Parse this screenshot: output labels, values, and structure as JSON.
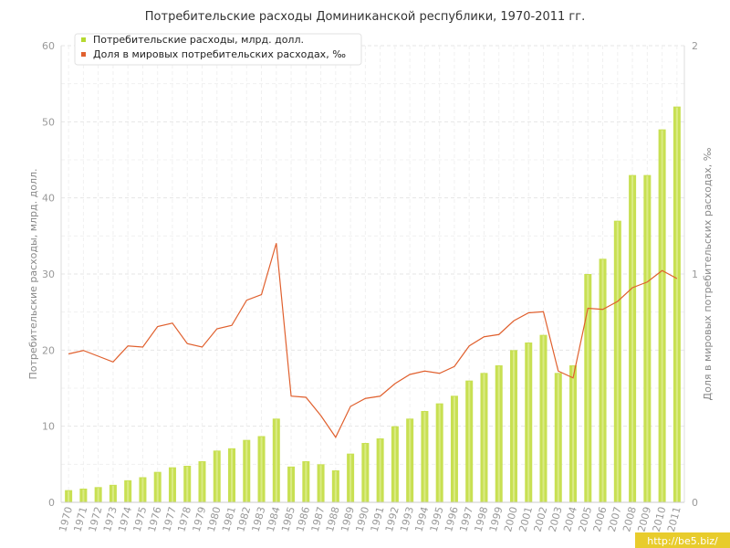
{
  "watermark": "http://be5.biz/",
  "colors": {
    "bars": "#c8e052",
    "bar_stripe": "#e6f2a6",
    "line": "#e0602e",
    "grid": "#e6e6e6"
  },
  "chart_data": {
    "type": "bar",
    "title": "Потребительские расходы Доминиканской республики, 1970-2011 гг.",
    "ylabel": "Потребительские расходы, млрд. долл.",
    "ylabel_right": "Доля в мировых потребительских расходах, ‰",
    "ylim": [
      0,
      60
    ],
    "ylim_right": [
      0,
      2
    ],
    "yticks": [
      "0",
      "10",
      "20",
      "30",
      "40",
      "50",
      "60"
    ],
    "yticks_right": [
      "0",
      "1",
      "2"
    ],
    "legend_position": "top-left",
    "grid": true,
    "categories": [
      "1970",
      "1971",
      "1972",
      "1973",
      "1974",
      "1975",
      "1976",
      "1977",
      "1978",
      "1979",
      "1980",
      "1981",
      "1982",
      "1983",
      "1984",
      "1985",
      "1986",
      "1987",
      "1988",
      "1989",
      "1990",
      "1991",
      "1992",
      "1993",
      "1994",
      "1995",
      "1996",
      "1997",
      "1998",
      "1999",
      "2000",
      "2001",
      "2002",
      "2003",
      "2004",
      "2005",
      "2006",
      "2007",
      "2008",
      "2009",
      "2010",
      "2011"
    ],
    "series": [
      {
        "name": "Потребительские расходы, млрд. долл.",
        "type": "bar",
        "axis": "left",
        "values": [
          1.6,
          1.8,
          2.0,
          2.3,
          2.9,
          3.3,
          4.0,
          4.6,
          4.8,
          5.4,
          6.8,
          7.1,
          8.2,
          8.7,
          11.0,
          4.7,
          5.4,
          5.0,
          4.2,
          6.4,
          7.8,
          8.4,
          10.0,
          11.0,
          12.0,
          13.0,
          14.0,
          16.0,
          17.0,
          18.0,
          20.0,
          21.0,
          22.0,
          17.0,
          18.0,
          30.0,
          32.0,
          37.0,
          43.0,
          43.0,
          49.0,
          52.0
        ]
      },
      {
        "name": "Доля в мировых потребительских расходах, ‰",
        "type": "line",
        "axis": "right",
        "values": [
          0.65,
          0.665,
          0.64,
          0.615,
          0.685,
          0.68,
          0.77,
          0.785,
          0.695,
          0.68,
          0.76,
          0.775,
          0.885,
          0.91,
          1.135,
          0.465,
          0.46,
          0.38,
          0.285,
          0.42,
          0.455,
          0.465,
          0.52,
          0.56,
          0.575,
          0.565,
          0.595,
          0.685,
          0.725,
          0.735,
          0.795,
          0.83,
          0.835,
          0.575,
          0.545,
          0.85,
          0.845,
          0.88,
          0.94,
          0.965,
          1.015,
          0.98
        ]
      }
    ]
  }
}
